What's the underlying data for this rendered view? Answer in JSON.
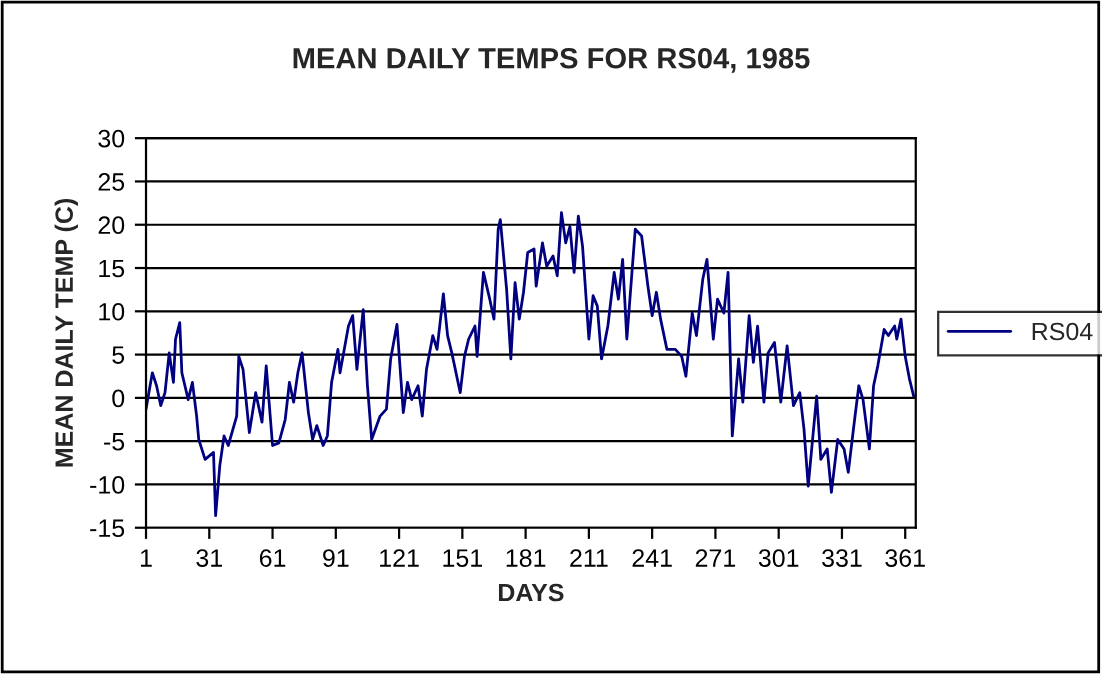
{
  "chart_data": {
    "type": "line",
    "title": "MEAN DAILY TEMPS FOR RS04, 1985",
    "xlabel": "DAYS",
    "ylabel": "MEAN DAILY TEMP (C)",
    "series": [
      {
        "name": "RS04",
        "color": "#000080",
        "x": [
          1,
          4,
          6,
          8,
          10,
          12,
          14,
          15,
          17,
          18,
          21,
          23,
          25,
          26,
          29,
          33,
          34,
          36,
          38,
          40,
          44,
          45,
          47,
          50,
          53,
          56,
          58,
          61,
          64,
          67,
          69,
          71,
          73,
          75,
          78,
          80,
          82,
          85,
          87,
          89,
          92,
          93,
          97,
          99,
          101,
          104,
          106,
          108,
          112,
          115,
          117,
          120,
          123,
          125,
          127,
          130,
          132,
          134,
          137,
          139,
          142,
          144,
          146,
          150,
          152,
          154,
          157,
          158,
          161,
          164,
          166,
          168,
          169,
          172,
          174,
          176,
          178,
          180,
          182,
          185,
          186,
          189,
          191,
          194,
          196,
          198,
          200,
          202,
          204,
          206,
          208,
          211,
          213,
          215,
          217,
          220,
          223,
          225,
          227,
          229,
          233,
          236,
          239,
          241,
          243,
          245,
          248,
          252,
          255,
          257,
          260,
          262,
          265,
          267,
          270,
          272,
          275,
          277,
          279,
          282,
          284,
          287,
          289,
          291,
          294,
          296,
          299,
          302,
          305,
          308,
          311,
          313,
          315,
          319,
          321,
          324,
          326,
          329,
          332,
          334,
          337,
          339,
          341,
          344,
          346,
          348,
          351,
          353,
          356,
          357,
          359,
          361,
          363,
          365
        ],
        "values": [
          -1.3,
          2.9,
          1.4,
          -0.9,
          0.6,
          5.2,
          1.8,
          6.8,
          8.7,
          2.9,
          -0.2,
          1.8,
          -2.1,
          -4.8,
          -7.1,
          -6.3,
          -13.6,
          -7.8,
          -4.4,
          -5.5,
          -2.1,
          4.8,
          3.3,
          -4.0,
          0.6,
          -2.8,
          3.7,
          -5.5,
          -5.2,
          -2.5,
          1.8,
          -0.5,
          2.9,
          5.2,
          -1.7,
          -4.8,
          -3.2,
          -5.5,
          -4.4,
          1.8,
          5.6,
          2.9,
          8.3,
          9.5,
          3.3,
          10.2,
          1.4,
          -4.8,
          -2.1,
          -1.3,
          4.5,
          8.5,
          -1.7,
          1.8,
          -0.2,
          1.4,
          -2.1,
          3.3,
          7.2,
          5.6,
          12.0,
          7.2,
          5.2,
          0.6,
          4.8,
          6.8,
          8.3,
          4.8,
          14.5,
          11.4,
          9.1,
          19.5,
          20.6,
          12.5,
          4.5,
          13.3,
          9.1,
          12.2,
          16.8,
          17.2,
          12.9,
          17.9,
          15.2,
          16.4,
          14.1,
          21.4,
          17.9,
          19.8,
          14.5,
          21.0,
          17.5,
          6.8,
          11.8,
          10.6,
          4.5,
          8.3,
          14.5,
          11.4,
          16.0,
          6.8,
          19.5,
          18.7,
          12.9,
          9.5,
          12.2,
          9.1,
          5.6,
          5.6,
          4.8,
          2.5,
          9.8,
          7.2,
          13.7,
          16.0,
          6.8,
          11.4,
          9.8,
          14.5,
          -4.4,
          4.5,
          -0.5,
          9.5,
          4.1,
          8.3,
          -0.5,
          5.2,
          6.4,
          -0.5,
          6.0,
          -0.9,
          0.6,
          -3.6,
          -10.2,
          0.2,
          -7.1,
          -5.9,
          -10.9,
          -4.8,
          -5.9,
          -8.6,
          -2.5,
          1.4,
          -0.2,
          -5.9,
          1.4,
          3.7,
          7.9,
          7.2,
          8.3,
          6.8,
          9.1,
          4.8,
          2.2,
          0.2
        ]
      }
    ],
    "xlim": [
      1,
      366
    ],
    "xticks": [
      1,
      31,
      61,
      91,
      121,
      151,
      181,
      211,
      241,
      271,
      301,
      331,
      361
    ],
    "ylim": [
      -15,
      30
    ],
    "yticks": [
      -15,
      -10,
      -5,
      0,
      5,
      10,
      15,
      20,
      25,
      30
    ],
    "grid": "y",
    "legend": "right",
    "marker": "none",
    "line_style": "solid"
  }
}
